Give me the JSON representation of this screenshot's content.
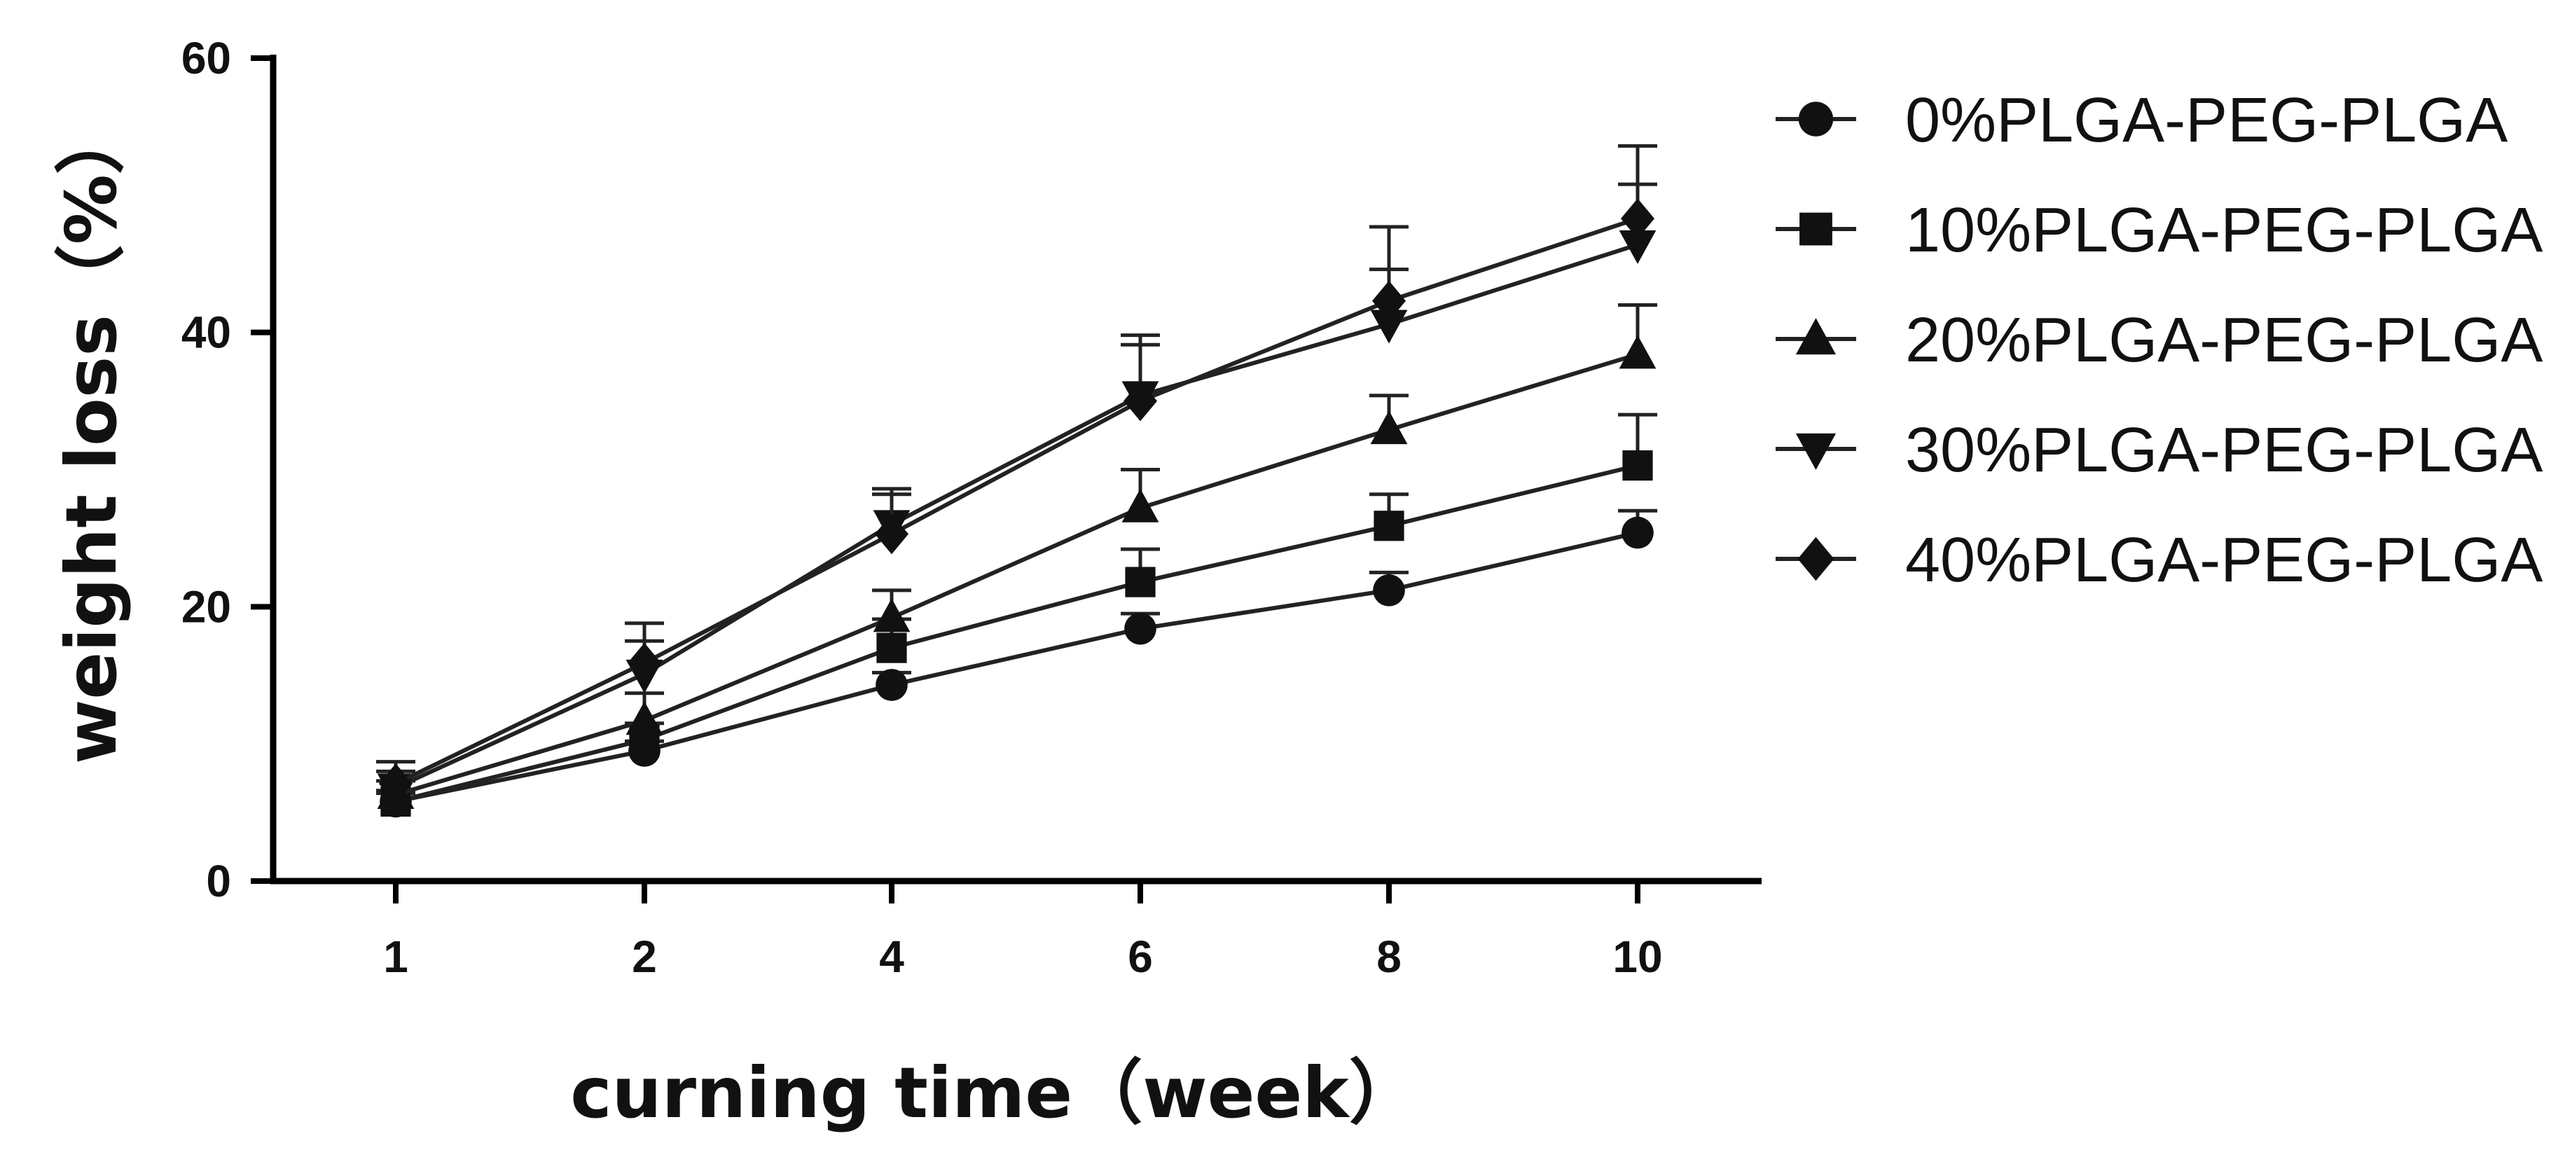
{
  "chart_data": {
    "type": "line",
    "title": "",
    "xlabel": "curning time（week）",
    "ylabel": "weight loss（%）",
    "categories": [
      "1",
      "2",
      "4",
      "6",
      "8",
      "10"
    ],
    "ylim": [
      0,
      60
    ],
    "yticks": [
      "0",
      "20",
      "40",
      "60"
    ],
    "grid": false,
    "legend_position": "right",
    "series": [
      {
        "name": "0%PLGA-PEG-PLGA",
        "marker": "circle",
        "values": [
          5.8,
          9.5,
          14.3,
          18.4,
          21.2,
          25.4
        ],
        "errors": [
          0.6,
          0.7,
          0.9,
          1.1,
          1.3,
          1.6
        ]
      },
      {
        "name": "10%PLGA-PEG-PLGA",
        "marker": "square",
        "values": [
          5.8,
          10.3,
          17.0,
          21.8,
          25.9,
          30.3
        ],
        "errors": [
          0.8,
          1.2,
          2.1,
          2.4,
          2.3,
          3.7
        ]
      },
      {
        "name": "20%PLGA-PEG-PLGA",
        "marker": "triangle-up",
        "values": [
          6.3,
          11.7,
          19.2,
          27.2,
          32.9,
          38.4
        ],
        "errors": [
          1.0,
          2.0,
          2.0,
          2.8,
          2.5,
          3.6
        ]
      },
      {
        "name": "30%PLGA-PEG-PLGA",
        "marker": "triangle-down",
        "values": [
          6.8,
          15.1,
          26.0,
          35.4,
          40.6,
          46.4
        ],
        "errors": [
          1.2,
          2.4,
          2.6,
          3.7,
          4.0,
          4.4
        ]
      },
      {
        "name": "40%PLGA-PEG-PLGA",
        "marker": "diamond",
        "values": [
          7.1,
          15.9,
          25.3,
          35.0,
          42.3,
          48.3
        ],
        "errors": [
          1.6,
          2.9,
          2.9,
          4.8,
          5.4,
          5.3
        ]
      }
    ]
  }
}
